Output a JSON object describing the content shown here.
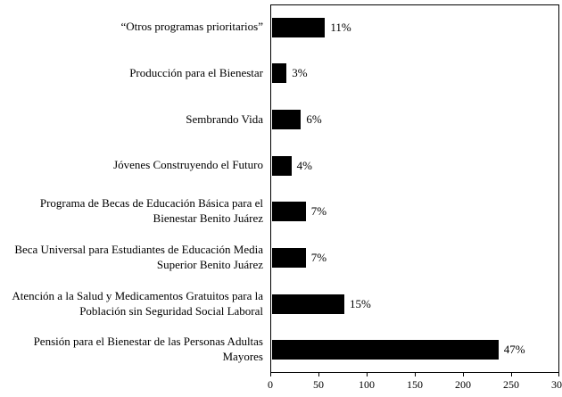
{
  "chart_data": {
    "type": "bar",
    "orientation": "horizontal",
    "title": "",
    "xlabel": "",
    "ylabel": "",
    "xlim": [
      0,
      300
    ],
    "xticks": [
      0,
      50,
      100,
      150,
      200,
      250,
      300
    ],
    "grid": false,
    "bar_color": "#000000",
    "categories": [
      "“Otros programas prioritarios”",
      "Producción para el Bienestar",
      "Sembrando Vida",
      "Jóvenes Construyendo el Futuro",
      "Programa de Becas de Educación Básica para el Bienestar Benito Juárez",
      "Beca Universal para Estudiantes de Educación Media Superior Benito Juárez",
      "Atención a la Salud y Medicamentos Gratuitos para la Población sin Seguridad Social Laboral",
      "Pensión para el Bienestar de las Personas Adultas Mayores"
    ],
    "values": [
      55,
      15,
      30,
      20,
      35,
      35,
      75,
      235
    ],
    "percent_labels": [
      "11%",
      "3%",
      "6%",
      "4%",
      "7%",
      "7%",
      "15%",
      "47%"
    ]
  }
}
